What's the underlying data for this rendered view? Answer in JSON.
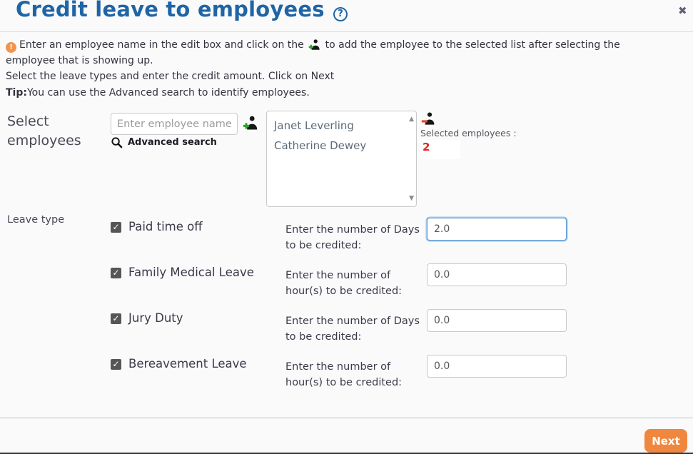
{
  "header": {
    "title": "Credit leave to employees",
    "help_glyph": "?",
    "close_glyph": "✖"
  },
  "instructions": {
    "alert_glyph": "!",
    "line1_before_icon": "Enter an employee name in the edit box and click on the",
    "line1_after_icon": "to add the employee to the selected list after selecting the employee that is showing up.",
    "line2": "Select the leave types and enter the credit amount. Click on Next",
    "tip_label": "Tip:",
    "tip_text": "You can use the Advanced search to identify employees."
  },
  "select_employees": {
    "label": "Select employees",
    "input_placeholder": "Enter employee name",
    "advanced_search_label": "Advanced search",
    "employees": [
      "Janet Leverling",
      "Catherine Dewey"
    ],
    "scroll_up_glyph": "▲",
    "scroll_down_glyph": "▼",
    "selected_label": "Selected employees :",
    "selected_count": "2"
  },
  "leave_section": {
    "label": "Leave type",
    "check_glyph": "✓",
    "rows": [
      {
        "name": "Paid time off",
        "checked": true,
        "prompt": "Enter the number of Days to be credited:",
        "value": "2.0",
        "focused": true
      },
      {
        "name": "Family Medical Leave",
        "checked": true,
        "prompt": "Enter the number of hour(s) to be credited:",
        "value": "0.0",
        "focused": false
      },
      {
        "name": "Jury Duty",
        "checked": true,
        "prompt": "Enter the number of Days to be credited:",
        "value": "0.0",
        "focused": false
      },
      {
        "name": "Bereavement Leave",
        "checked": true,
        "prompt": "Enter the number of hour(s) to be credited:",
        "value": "0.0",
        "focused": false
      }
    ]
  },
  "footer": {
    "next_label": "Next"
  },
  "colors": {
    "title_blue": "#1f65a6",
    "accent_orange": "#f0873f",
    "count_red": "#e02620",
    "add_green": "#2da42d",
    "remove_red": "#e8442c"
  }
}
